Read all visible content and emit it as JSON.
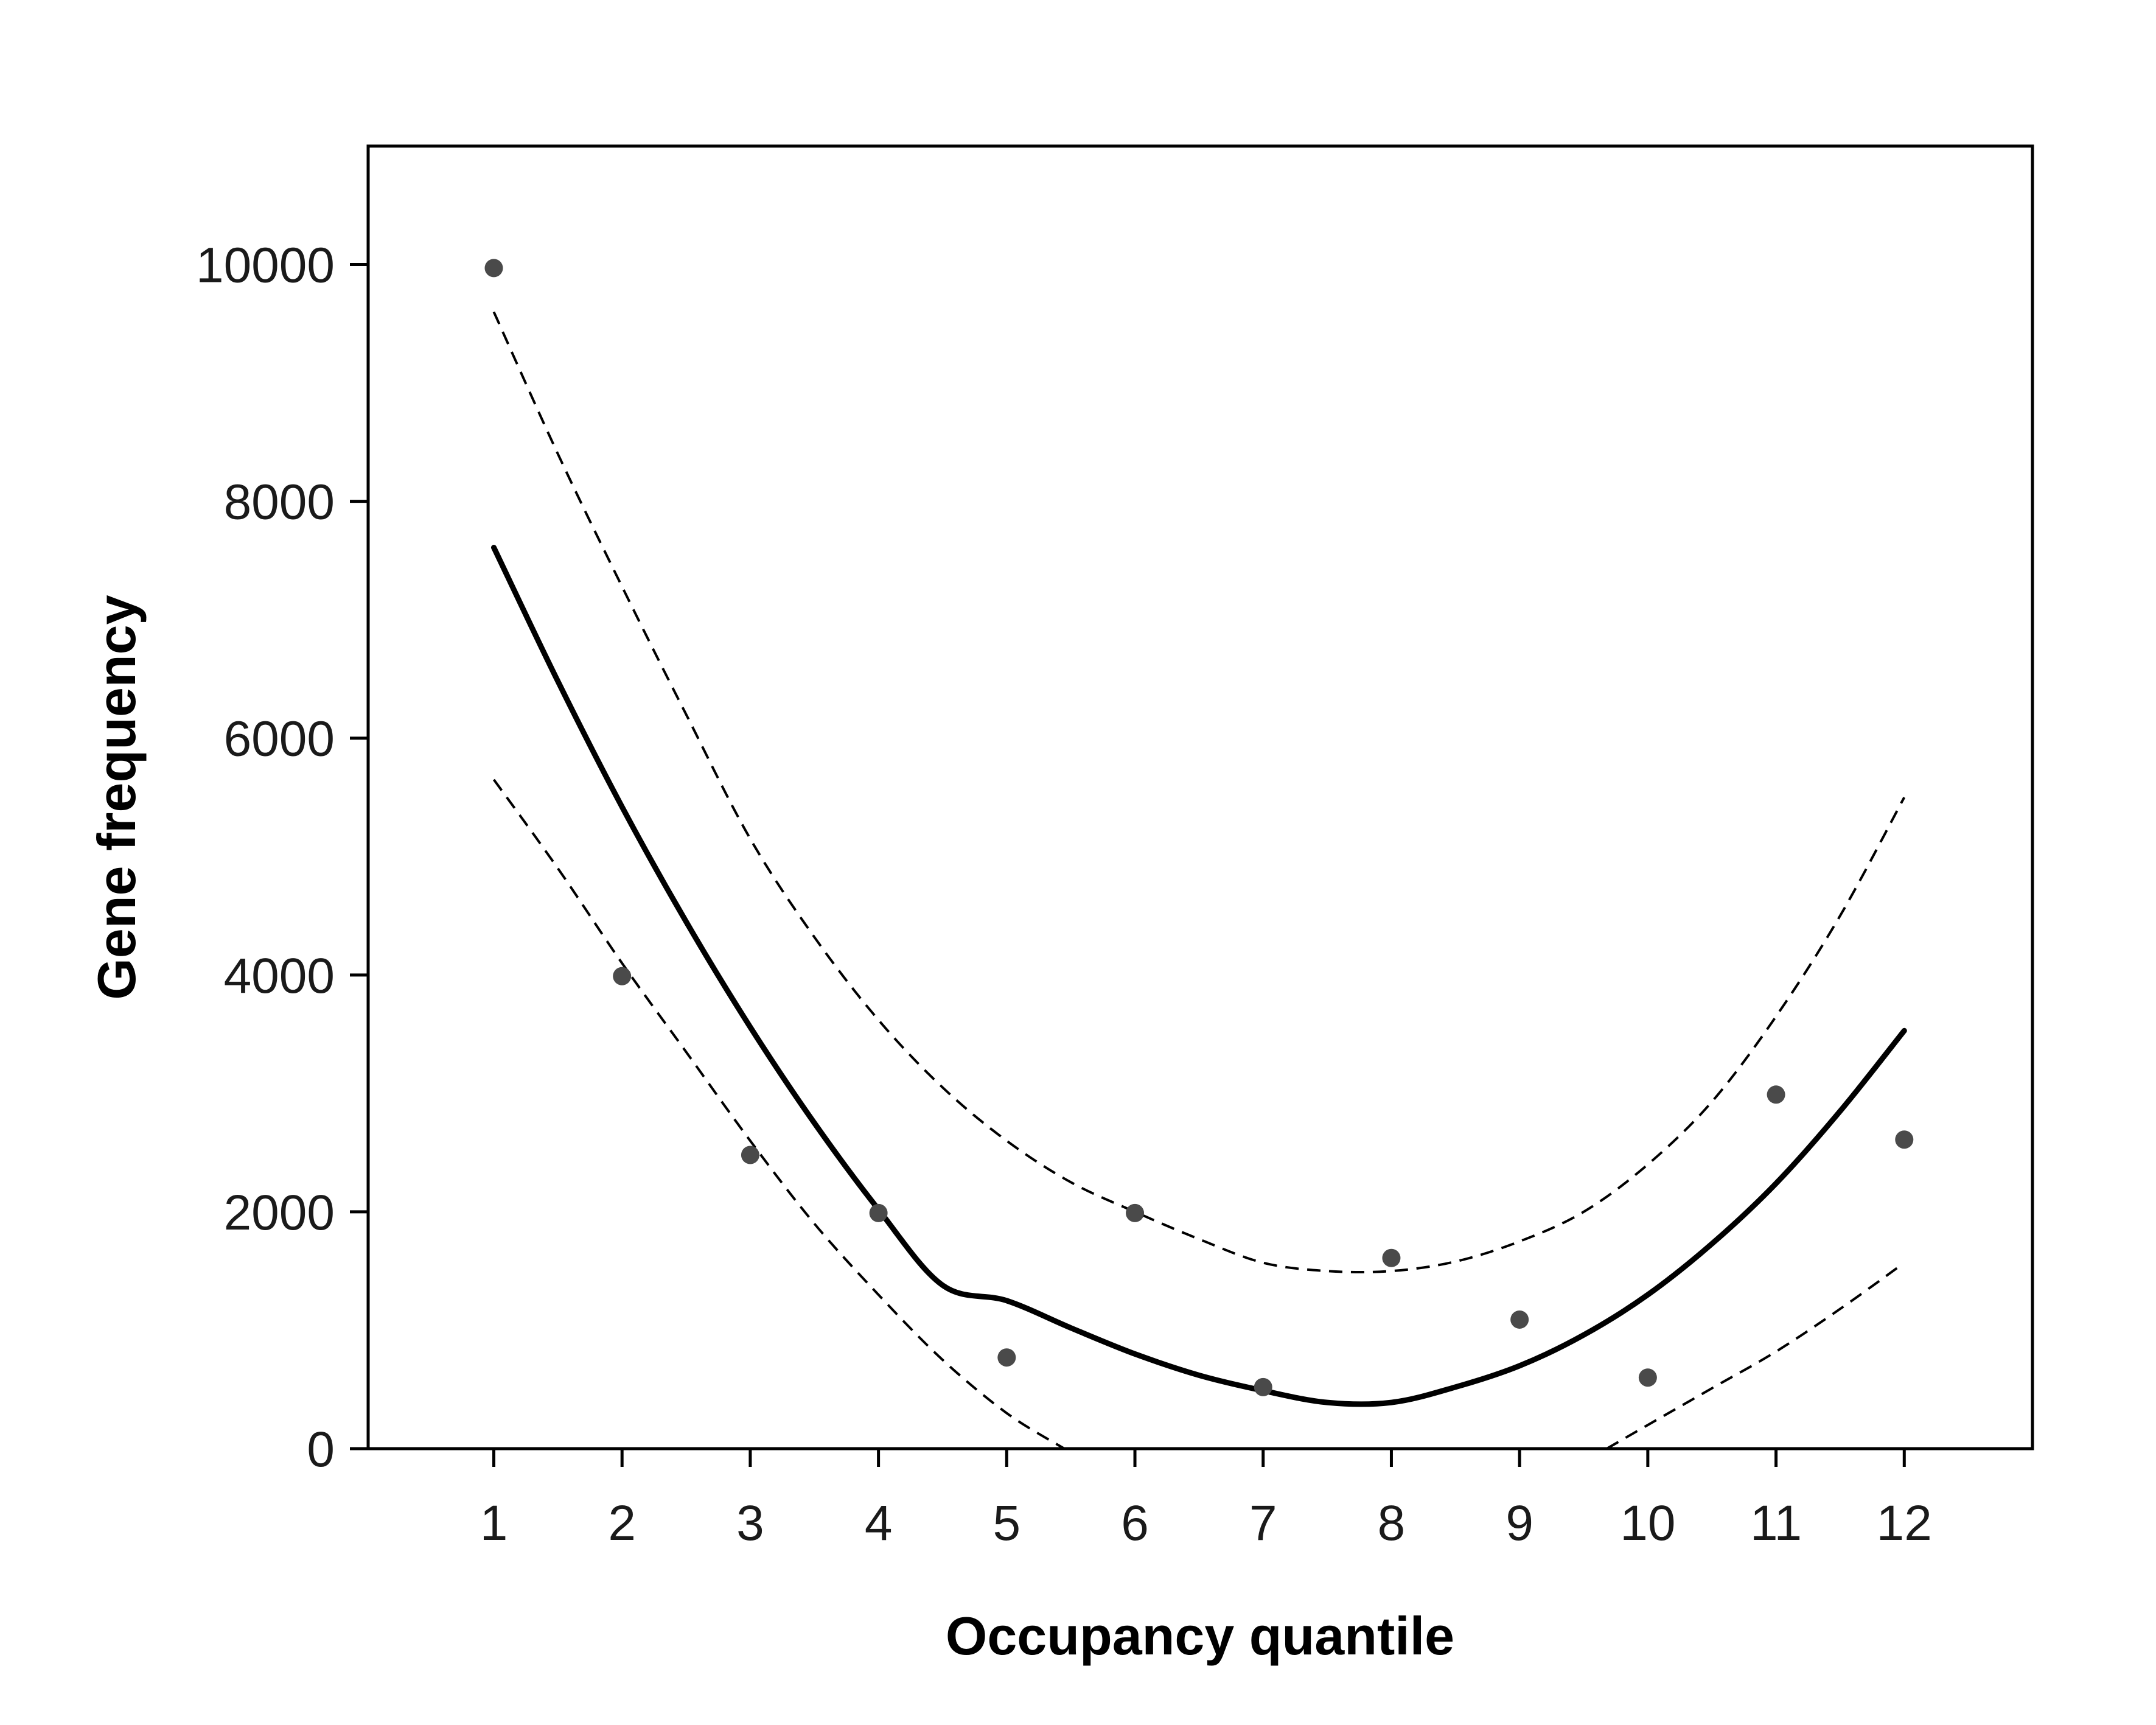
{
  "chart_data": {
    "type": "scatter",
    "xlabel": "Occupancy quantile",
    "ylabel": "Gene frequency",
    "xlim": [
      0.02,
      13.0
    ],
    "ylim": [
      0,
      11000
    ],
    "x_ticks": [
      1,
      2,
      3,
      4,
      5,
      6,
      7,
      8,
      9,
      10,
      11,
      12
    ],
    "y_ticks": [
      0,
      2000,
      4000,
      6000,
      8000,
      10000
    ],
    "grid": false,
    "legend": "none",
    "points": {
      "x": [
        1,
        2,
        3,
        4,
        5,
        6,
        7,
        8,
        9,
        10,
        11,
        12
      ],
      "y": [
        9970,
        3990,
        2480,
        1990,
        770,
        1990,
        520,
        1610,
        1090,
        600,
        2990,
        2610
      ]
    },
    "fit": {
      "x": [
        1.0,
        1.5,
        2.0,
        2.5,
        3.0,
        3.5,
        4.0,
        4.5,
        5.0,
        5.5,
        6.0,
        6.5,
        7.0,
        7.5,
        8.0,
        8.5,
        9.0,
        9.5,
        10.0,
        10.5,
        11.0,
        11.5,
        12.0
      ],
      "y": [
        7610,
        6480,
        5420,
        4450,
        3560,
        2750,
        2020,
        1380,
        1250,
        1020,
        800,
        620,
        490,
        390,
        390,
        520,
        700,
        960,
        1300,
        1730,
        2240,
        2850,
        3530
      ]
    },
    "upper_band": {
      "x": [
        1.0,
        1.5,
        2.0,
        2.5,
        3.0,
        3.5,
        4.0,
        4.5,
        5.0,
        5.5,
        6.0,
        6.5,
        7.0,
        7.5,
        8.0,
        8.5,
        9.0,
        9.5,
        10.0,
        10.5,
        11.0,
        11.5,
        12.0
      ],
      "y": [
        9600,
        8400,
        7280,
        6200,
        5150,
        4320,
        3620,
        3050,
        2600,
        2250,
        2000,
        1770,
        1570,
        1500,
        1500,
        1580,
        1750,
        2000,
        2400,
        2930,
        3650,
        4500,
        5500
      ]
    },
    "lower_band_left": {
      "x": [
        1.0,
        1.5,
        2.0,
        2.5,
        3.0,
        3.5,
        4.0,
        4.5,
        5.0,
        5.45
      ],
      "y": [
        5650,
        4900,
        4100,
        3350,
        2600,
        1900,
        1300,
        750,
        300,
        0
      ]
    },
    "lower_band_right": {
      "x": [
        9.68,
        10.0,
        10.5,
        11.0,
        11.5,
        11.95
      ],
      "y": [
        0,
        200,
        510,
        820,
        1180,
        1530
      ]
    },
    "colors": {
      "points": "#4a4a4a",
      "fit": "#000000",
      "band": "#000000",
      "axes": "#000000"
    }
  }
}
